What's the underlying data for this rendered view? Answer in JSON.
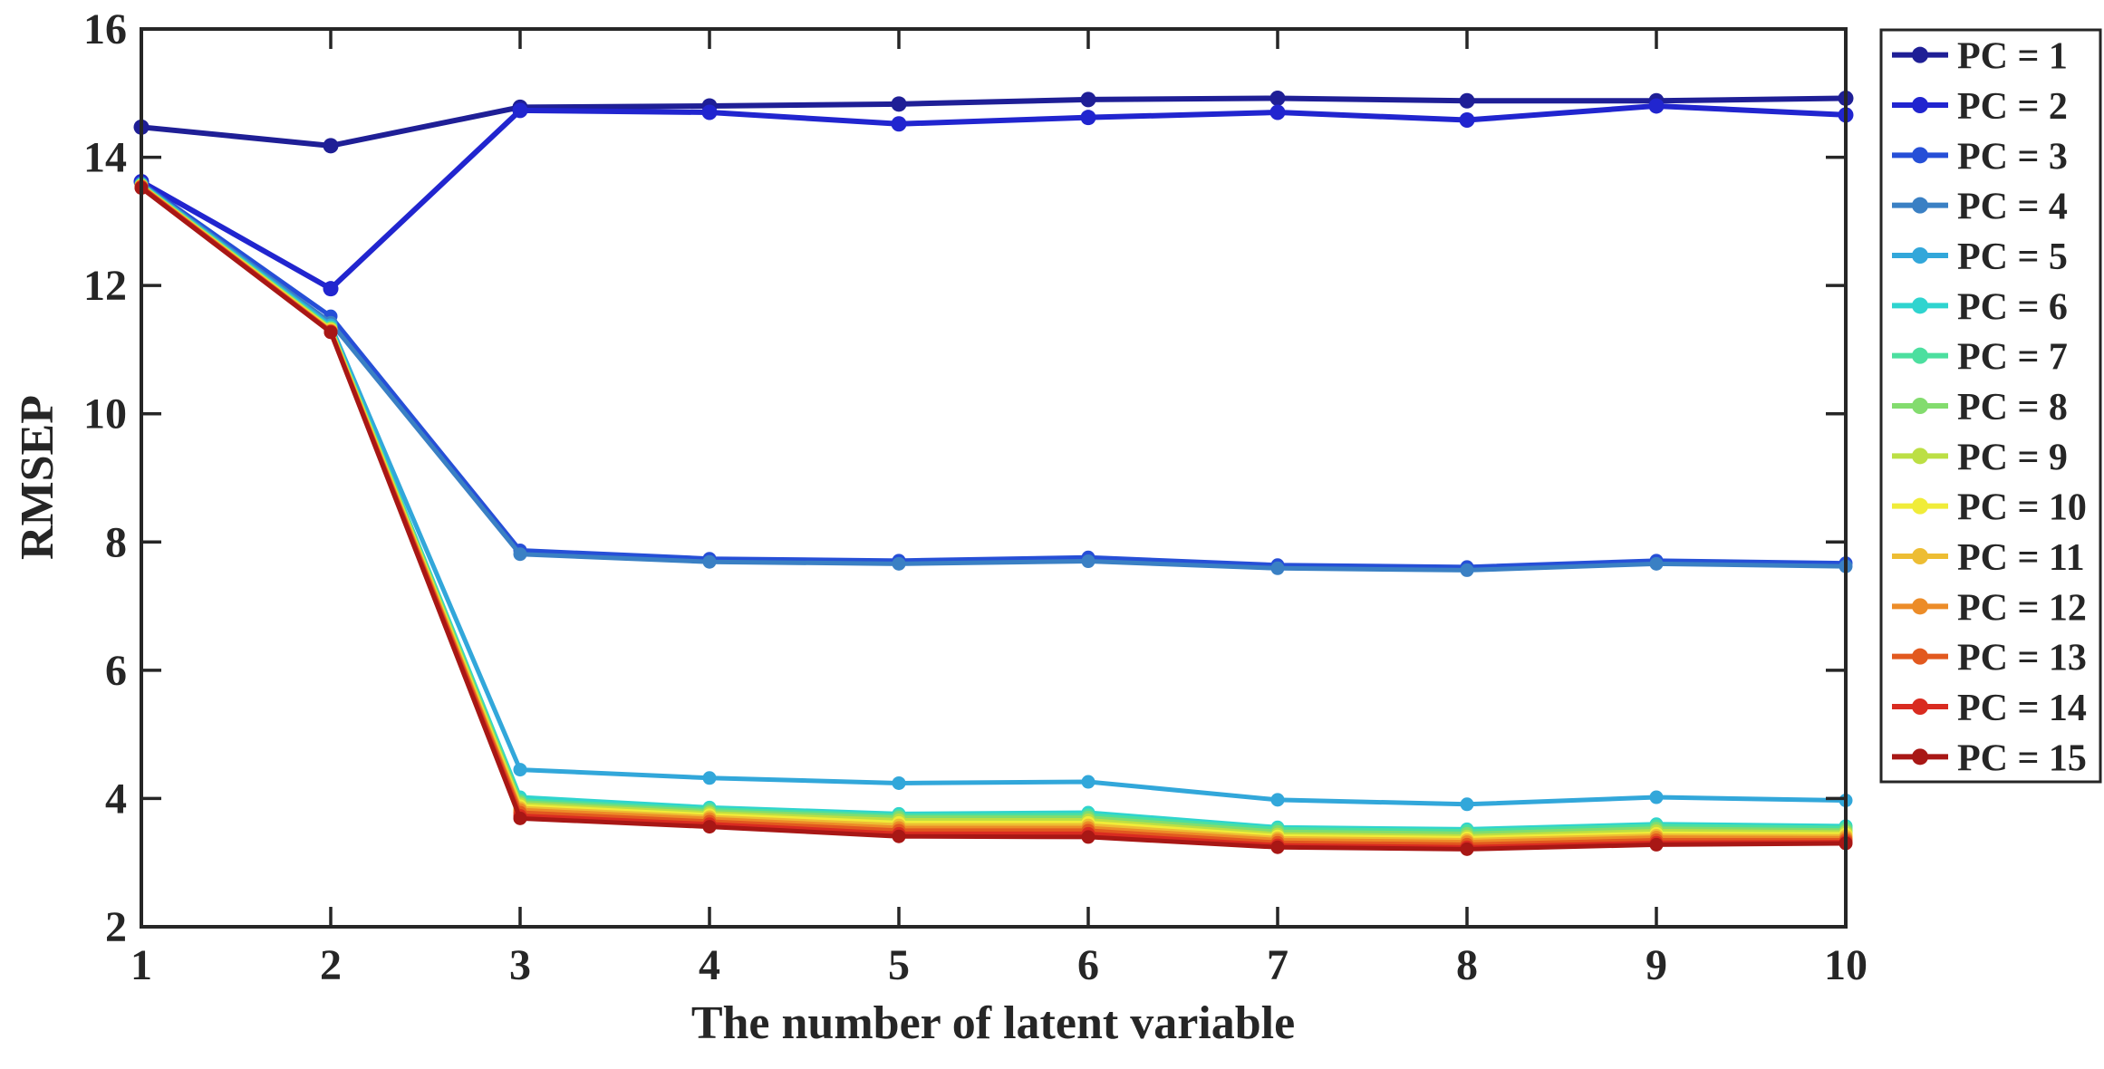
{
  "figure": {
    "background": "#ffffff",
    "axis_color": "#262626"
  },
  "chart_data": {
    "type": "line",
    "title": "",
    "xlabel": "The number of latent variable",
    "ylabel": "RMSEP",
    "xlim": [
      1,
      10
    ],
    "ylim": [
      2,
      16
    ],
    "xticks": [
      1,
      2,
      3,
      4,
      5,
      6,
      7,
      8,
      9,
      10
    ],
    "yticks": [
      2,
      4,
      6,
      8,
      10,
      12,
      14,
      16
    ],
    "grid": false,
    "legend_position": "outside-right",
    "x": [
      1,
      2,
      3,
      4,
      5,
      6,
      7,
      8,
      9,
      10
    ],
    "series": [
      {
        "name": "PC = 1",
        "color": "#1f1f96",
        "values": [
          14.47,
          14.18,
          14.78,
          14.8,
          14.83,
          14.9,
          14.92,
          14.88,
          14.88,
          14.92
        ]
      },
      {
        "name": "PC = 2",
        "color": "#2125cf",
        "values": [
          13.62,
          11.95,
          14.73,
          14.7,
          14.52,
          14.62,
          14.7,
          14.58,
          14.8,
          14.66
        ]
      },
      {
        "name": "PC = 3",
        "color": "#264fd7",
        "values": [
          13.6,
          11.52,
          7.87,
          7.74,
          7.71,
          7.76,
          7.64,
          7.61,
          7.71,
          7.67
        ]
      },
      {
        "name": "PC = 4",
        "color": "#3a80c4",
        "values": [
          13.59,
          11.42,
          7.81,
          7.69,
          7.66,
          7.7,
          7.59,
          7.56,
          7.66,
          7.62
        ]
      },
      {
        "name": "PC = 5",
        "color": "#32a7da",
        "values": [
          13.58,
          11.38,
          4.45,
          4.32,
          4.24,
          4.26,
          3.98,
          3.91,
          4.02,
          3.97
        ]
      },
      {
        "name": "PC = 6",
        "color": "#2fd4cf",
        "values": [
          13.57,
          11.35,
          4.02,
          3.86,
          3.76,
          3.78,
          3.55,
          3.52,
          3.6,
          3.57
        ]
      },
      {
        "name": "PC = 7",
        "color": "#4cdf9f",
        "values": [
          13.57,
          11.34,
          3.97,
          3.83,
          3.73,
          3.74,
          3.52,
          3.49,
          3.57,
          3.54
        ]
      },
      {
        "name": "PC = 8",
        "color": "#83dc6e",
        "values": [
          13.56,
          11.33,
          3.94,
          3.8,
          3.7,
          3.7,
          3.48,
          3.45,
          3.53,
          3.5
        ]
      },
      {
        "name": "PC = 9",
        "color": "#bcdf44",
        "values": [
          13.56,
          11.32,
          3.91,
          3.77,
          3.66,
          3.66,
          3.44,
          3.41,
          3.49,
          3.47
        ]
      },
      {
        "name": "PC = 10",
        "color": "#f0ec39",
        "values": [
          13.55,
          11.31,
          3.88,
          3.74,
          3.62,
          3.62,
          3.41,
          3.38,
          3.45,
          3.44
        ]
      },
      {
        "name": "PC = 11",
        "color": "#edbd33",
        "values": [
          13.55,
          11.3,
          3.85,
          3.71,
          3.58,
          3.58,
          3.38,
          3.35,
          3.42,
          3.41
        ]
      },
      {
        "name": "PC = 12",
        "color": "#ec8c28",
        "values": [
          13.54,
          11.29,
          3.82,
          3.68,
          3.54,
          3.54,
          3.35,
          3.32,
          3.39,
          3.38
        ]
      },
      {
        "name": "PC = 13",
        "color": "#e2591f",
        "values": [
          13.54,
          11.28,
          3.78,
          3.64,
          3.5,
          3.5,
          3.31,
          3.28,
          3.35,
          3.35
        ]
      },
      {
        "name": "PC = 14",
        "color": "#d92b20",
        "values": [
          13.53,
          11.28,
          3.73,
          3.6,
          3.45,
          3.45,
          3.27,
          3.24,
          3.31,
          3.32
        ]
      },
      {
        "name": "PC = 15",
        "color": "#a81715",
        "values": [
          13.52,
          11.27,
          3.69,
          3.56,
          3.41,
          3.4,
          3.24,
          3.21,
          3.28,
          3.3
        ]
      }
    ]
  }
}
